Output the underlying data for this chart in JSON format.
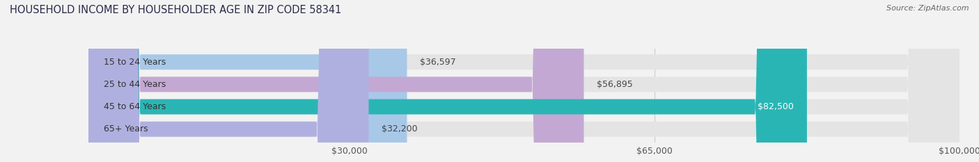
{
  "title": "HOUSEHOLD INCOME BY HOUSEHOLDER AGE IN ZIP CODE 58341",
  "source": "Source: ZipAtlas.com",
  "categories": [
    "15 to 24 Years",
    "25 to 44 Years",
    "45 to 64 Years",
    "65+ Years"
  ],
  "values": [
    36597,
    56895,
    82500,
    32200
  ],
  "bar_colors": [
    "#a8c8e8",
    "#c4a8d4",
    "#2ab5b5",
    "#b0b0e0"
  ],
  "bar_edge_colors": [
    "#a8c8e8",
    "#c4a8d4",
    "#2ab5b5",
    "#b0b0e0"
  ],
  "xlim_min": 0,
  "xlim_max": 100000,
  "xticks": [
    30000,
    65000,
    100000
  ],
  "xtick_labels": [
    "$30,000",
    "$65,000",
    "$100,000"
  ],
  "background_color": "#f2f2f2",
  "bar_bg_color": "#e4e4e4",
  "title_fontsize": 10.5,
  "label_fontsize": 9,
  "value_fontsize": 9,
  "source_fontsize": 8
}
